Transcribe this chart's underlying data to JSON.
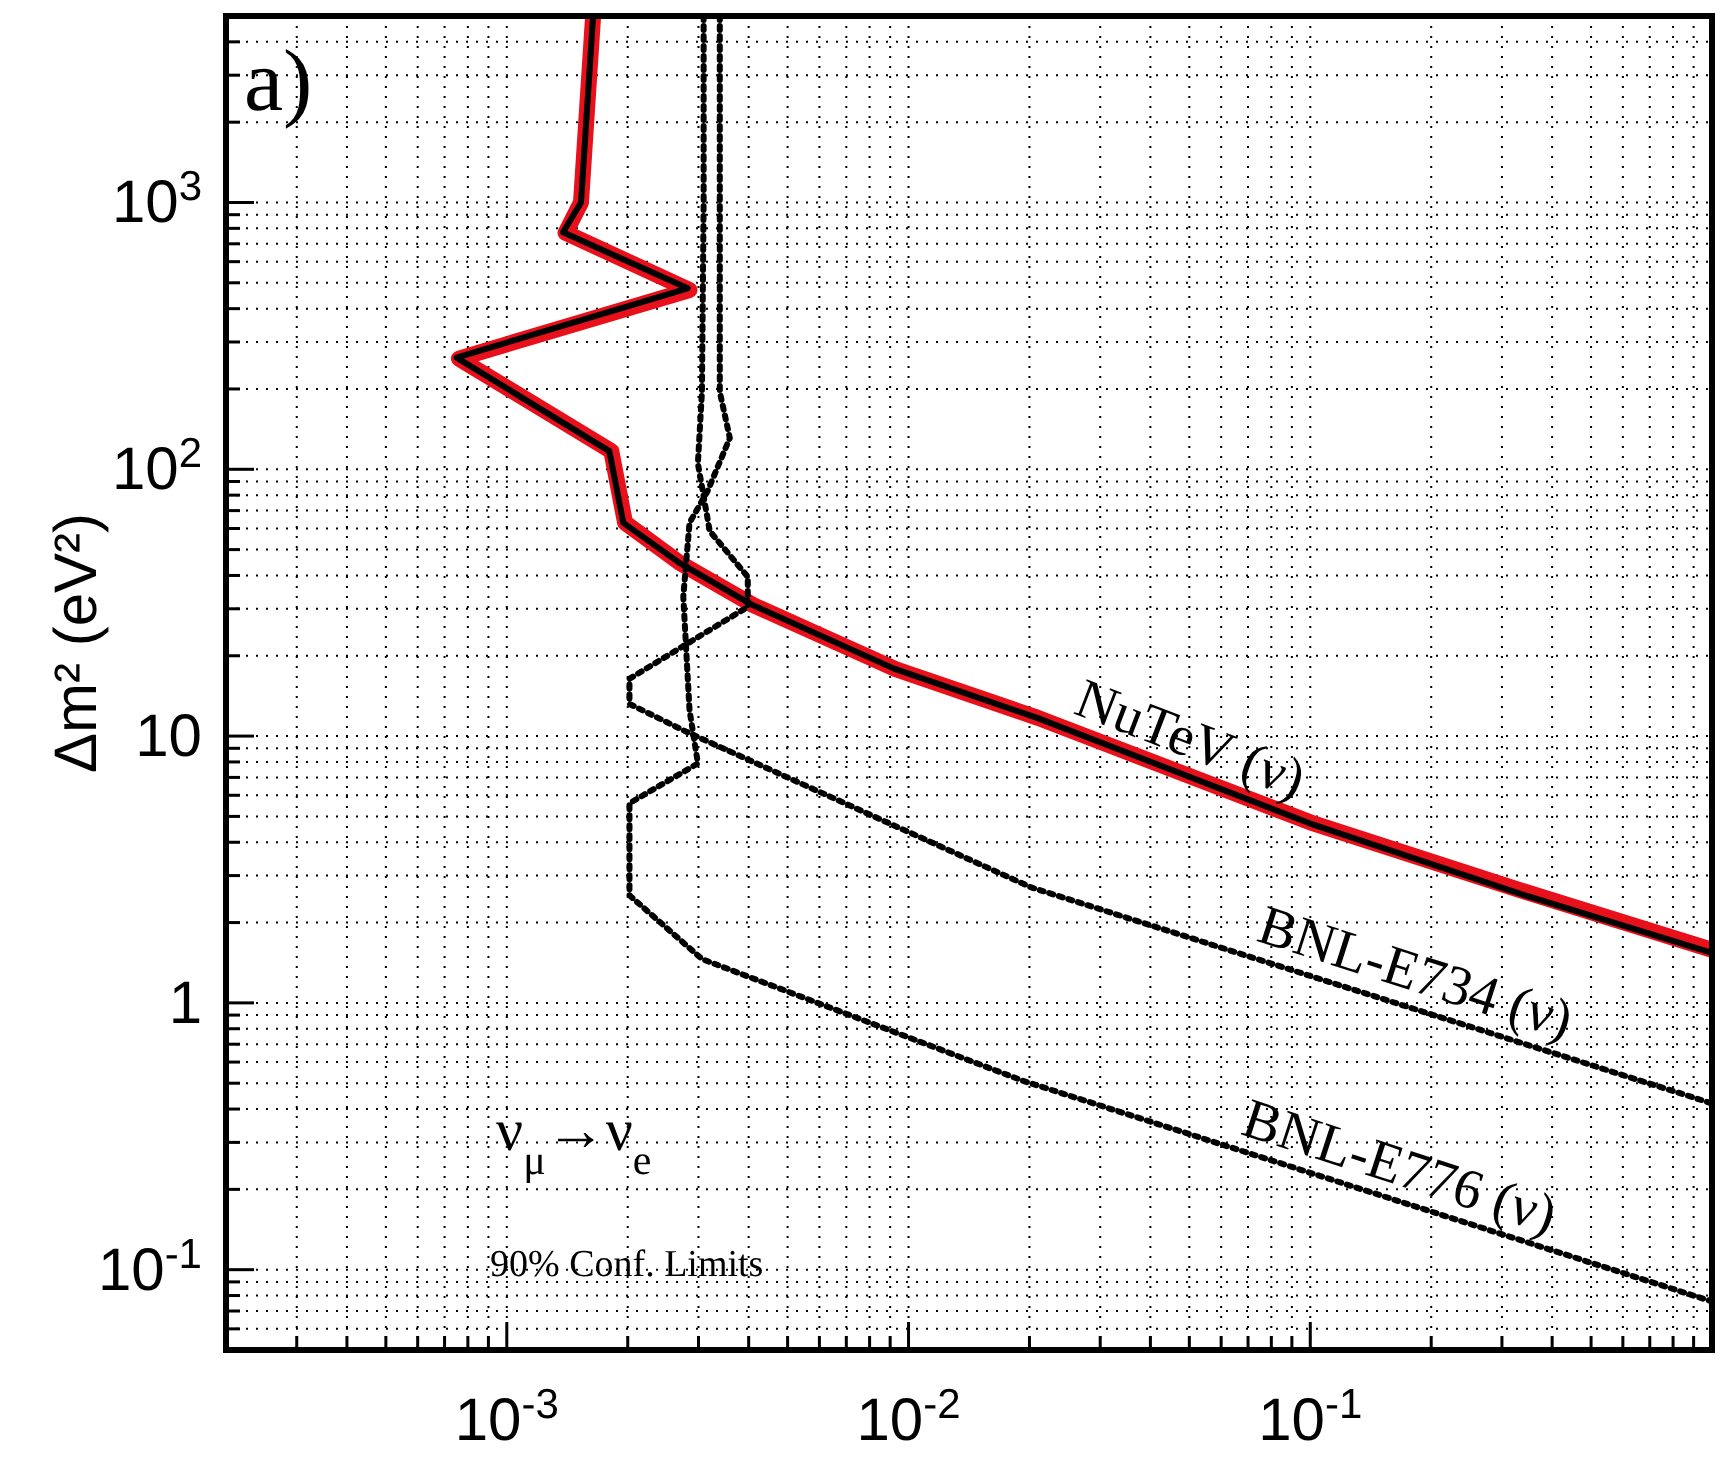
{
  "chart_data": {
    "type": "line",
    "ylabel": "Δm² (eV²)",
    "log": "xy",
    "grid": true,
    "line_style": "solid",
    "marker": "none",
    "xlim": [
      0.0002,
      1
    ],
    "ylim": [
      0.05,
      5000
    ],
    "xticks": [
      {
        "value": 0.0002,
        "label": null
      },
      {
        "value": 0.0003,
        "label": null
      },
      {
        "value": 0.0004,
        "label": null
      },
      {
        "value": 0.0005,
        "label": null
      },
      {
        "value": 0.0006,
        "label": null
      },
      {
        "value": 0.0007,
        "label": null
      },
      {
        "value": 0.0008,
        "label": null
      },
      {
        "value": 0.0009,
        "label": null
      },
      {
        "value": 0.001,
        "label": "10$^{-3}$"
      },
      {
        "value": 0.002,
        "label": null
      },
      {
        "value": 0.003,
        "label": null
      },
      {
        "value": 0.004,
        "label": null
      },
      {
        "value": 0.005,
        "label": null
      },
      {
        "value": 0.006,
        "label": null
      },
      {
        "value": 0.007,
        "label": null
      },
      {
        "value": 0.008,
        "label": null
      },
      {
        "value": 0.009,
        "label": null
      },
      {
        "value": 0.01,
        "label": "10$^{-2}$"
      },
      {
        "value": 0.02,
        "label": null
      },
      {
        "value": 0.03,
        "label": null
      },
      {
        "value": 0.04,
        "label": null
      },
      {
        "value": 0.05,
        "label": null
      },
      {
        "value": 0.06,
        "label": null
      },
      {
        "value": 0.07,
        "label": null
      },
      {
        "value": 0.08,
        "label": null
      },
      {
        "value": 0.09,
        "label": null
      },
      {
        "value": 0.1,
        "label": "10$^{-1}$"
      },
      {
        "value": 0.2,
        "label": null
      },
      {
        "value": 0.3,
        "label": null
      },
      {
        "value": 0.4,
        "label": null
      },
      {
        "value": 0.5,
        "label": null
      },
      {
        "value": 0.6,
        "label": null
      },
      {
        "value": 0.7,
        "label": null
      },
      {
        "value": 0.8,
        "label": null
      },
      {
        "value": 0.9,
        "label": null
      }
    ],
    "yticks": [
      {
        "value": 0.06,
        "label": null
      },
      {
        "value": 0.07,
        "label": null
      },
      {
        "value": 0.08,
        "label": null
      },
      {
        "value": 0.09,
        "label": null
      },
      {
        "value": 0.1,
        "label": "10$^{-1}$"
      },
      {
        "value": 0.2,
        "label": null
      },
      {
        "value": 0.3,
        "label": null
      },
      {
        "value": 0.4,
        "label": null
      },
      {
        "value": 0.5,
        "label": null
      },
      {
        "value": 0.6,
        "label": null
      },
      {
        "value": 0.7,
        "label": null
      },
      {
        "value": 0.8,
        "label": null
      },
      {
        "value": 0.9,
        "label": null
      },
      1,
      {
        "value": 2,
        "label": null
      },
      {
        "value": 3,
        "label": null
      },
      {
        "value": 4,
        "label": null
      },
      {
        "value": 5,
        "label": null
      },
      {
        "value": 6,
        "label": null
      },
      {
        "value": 7,
        "label": null
      },
      {
        "value": 8,
        "label": null
      },
      {
        "value": 9,
        "label": null
      },
      10,
      {
        "value": 20,
        "label": null
      },
      {
        "value": 30,
        "label": null
      },
      {
        "value": 40,
        "label": null
      },
      {
        "value": 50,
        "label": null
      },
      {
        "value": 60,
        "label": null
      },
      {
        "value": 70,
        "label": null
      },
      {
        "value": 80,
        "label": null
      },
      {
        "value": 90,
        "label": null
      },
      {
        "value": 100,
        "label": "10$^{2}$"
      },
      {
        "value": 200,
        "label": null
      },
      {
        "value": 300,
        "label": null
      },
      {
        "value": 400,
        "label": null
      },
      {
        "value": 500,
        "label": null
      },
      {
        "value": 600,
        "label": null
      },
      {
        "value": 700,
        "label": null
      },
      {
        "value": 800,
        "label": null
      },
      {
        "value": 900,
        "label": null
      },
      {
        "value": 1000,
        "label": "10$^{3}$"
      },
      {
        "value": 2000,
        "label": null
      },
      {
        "value": 3000,
        "label": null
      },
      {
        "value": 4000,
        "label": null
      }
    ],
    "series": [
      {
        "color": "#e8101a",
        "x": [
          0.00164,
          0.00153,
          0.0014,
          0.00285,
          0.00076,
          0.00182,
          0.00197,
          0.0027,
          0.0041,
          0.0093,
          0.021,
          0.1,
          0.345,
          1.0
        ],
        "values": [
          5000,
          1000,
          770,
          470,
          260,
          117,
          63,
          44.5,
          31,
          17.8,
          11.7,
          4.75,
          2.6,
          1.58
        ]
      },
      {
        "color": "#000000",
        "x": [
          0.00164,
          0.00153,
          0.00138,
          0.00282,
          0.00075,
          0.0018,
          0.00195,
          0.00269,
          0.00407,
          0.0092,
          0.0209,
          0.1,
          0.343,
          1.0
        ],
        "values": [
          5000,
          1000,
          773,
          477,
          262,
          117,
          63,
          44.6,
          31.1,
          17.9,
          11.7,
          4.7,
          2.53,
          1.54
        ]
      },
      {
        "color": "#000000",
        "line_style": "dotted",
        "x": [
          0.00309,
          0.00309,
          0.00306,
          0.00299,
          0.0032,
          0.00398,
          0.00398,
          0.00202,
          0.00202,
          0.00279,
          0.0202,
          1.0
        ],
        "values": [
          5000,
          1000,
          195,
          105,
          58.7,
          39.5,
          30.5,
          16.4,
          13.2,
          10.4,
          2.71,
          0.42
        ]
      },
      {
        "color": "#000000",
        "line_style": "dotted",
        "x": [
          0.00339,
          0.00339,
          0.00359,
          0.00316,
          0.00285,
          0.00275,
          0.00285,
          0.00299,
          0.00202,
          0.00202,
          0.00306,
          0.0193,
          1.0
        ],
        "values": [
          5000,
          195,
          131,
          82.8,
          63,
          33.3,
          12.5,
          7.9,
          5.6,
          2.53,
          1.46,
          0.51,
          0.076
        ]
      }
    ],
    "annotations": [
      "a)",
      "ν$_{μ}$→ν$_{e}$",
      "90% Conf. Limits",
      "NuTeV (ν)",
      "BNL-E734 (ν)",
      "BNL-E776 (ν)"
    ]
  }
}
